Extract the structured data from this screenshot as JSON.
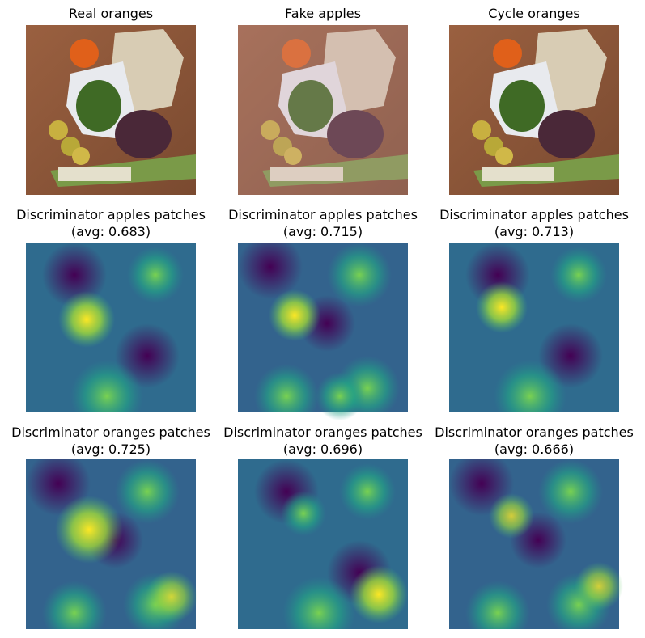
{
  "panels": [
    {
      "title": "Real oranges"
    },
    {
      "title": "Fake apples"
    },
    {
      "title": "Cycle oranges"
    },
    {
      "title": "Discriminator apples patches",
      "subtitle": "(avg: 0.683)"
    },
    {
      "title": "Discriminator apples patches",
      "subtitle": "(avg: 0.715)"
    },
    {
      "title": "Discriminator apples patches",
      "subtitle": "(avg: 0.713)"
    },
    {
      "title": "Discriminator oranges patches",
      "subtitle": "(avg: 0.725)"
    },
    {
      "title": "Discriminator oranges patches",
      "subtitle": "(avg: 0.696)"
    },
    {
      "title": "Discriminator oranges patches",
      "subtitle": "(avg: 0.666)"
    }
  ]
}
